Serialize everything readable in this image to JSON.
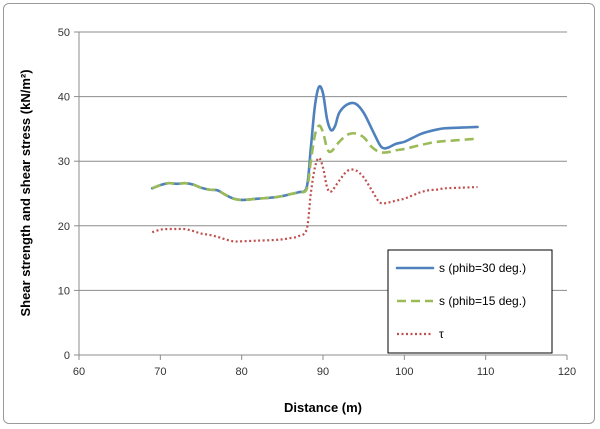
{
  "chart_data": {
    "type": "line",
    "title": "",
    "xlabel": "Distance (m)",
    "ylabel": "Shear strength and shear stress (kN/m²)",
    "xlim": [
      60,
      120
    ],
    "ylim": [
      0,
      50
    ],
    "xticks": [
      60,
      70,
      80,
      90,
      100,
      110,
      120
    ],
    "yticks": [
      0,
      10,
      20,
      30,
      40,
      50
    ],
    "grid": "horizontal",
    "legend_position": "bottom-right",
    "series": [
      {
        "name": "s (phib=30 deg.)",
        "color": "#4f81bd",
        "style": "solid",
        "points": [
          [
            69,
            25.8
          ],
          [
            70,
            26.3
          ],
          [
            71,
            26.6
          ],
          [
            72,
            26.5
          ],
          [
            73,
            26.6
          ],
          [
            74,
            26.4
          ],
          [
            75,
            25.9
          ],
          [
            76,
            25.6
          ],
          [
            77,
            25.5
          ],
          [
            78,
            24.8
          ],
          [
            79,
            24.2
          ],
          [
            80,
            24.0
          ],
          [
            82,
            24.2
          ],
          [
            84,
            24.4
          ],
          [
            85,
            24.6
          ],
          [
            86,
            24.9
          ],
          [
            87,
            25.2
          ],
          [
            88,
            26.0
          ],
          [
            88.5,
            32.0
          ],
          [
            89,
            38.5
          ],
          [
            89.5,
            41.5
          ],
          [
            90,
            40.5
          ],
          [
            90.5,
            36.5
          ],
          [
            91,
            34.8
          ],
          [
            91.5,
            35.5
          ],
          [
            92,
            37.5
          ],
          [
            93,
            38.8
          ],
          [
            94,
            38.9
          ],
          [
            95,
            37.5
          ],
          [
            96,
            35.0
          ],
          [
            97,
            32.5
          ],
          [
            97.5,
            32.0
          ],
          [
            98,
            32.1
          ],
          [
            99,
            32.7
          ],
          [
            100,
            33.0
          ],
          [
            101,
            33.6
          ],
          [
            102,
            34.2
          ],
          [
            103,
            34.6
          ],
          [
            104,
            34.9
          ],
          [
            105,
            35.1
          ],
          [
            107,
            35.2
          ],
          [
            109,
            35.3
          ]
        ]
      },
      {
        "name": "s (phib=15 deg.)",
        "color": "#9bbb59",
        "style": "dashed",
        "points": [
          [
            69,
            25.8
          ],
          [
            70,
            26.3
          ],
          [
            71,
            26.6
          ],
          [
            72,
            26.5
          ],
          [
            73,
            26.6
          ],
          [
            74,
            26.4
          ],
          [
            75,
            25.9
          ],
          [
            76,
            25.6
          ],
          [
            77,
            25.5
          ],
          [
            78,
            24.8
          ],
          [
            79,
            24.2
          ],
          [
            80,
            24.0
          ],
          [
            82,
            24.2
          ],
          [
            84,
            24.4
          ],
          [
            85,
            24.6
          ],
          [
            86,
            24.9
          ],
          [
            87,
            25.2
          ],
          [
            88,
            25.7
          ],
          [
            88.5,
            30.0
          ],
          [
            89,
            34.0
          ],
          [
            89.5,
            35.5
          ],
          [
            90,
            34.5
          ],
          [
            90.5,
            32.0
          ],
          [
            91,
            31.5
          ],
          [
            92,
            33.0
          ],
          [
            93,
            34.1
          ],
          [
            94,
            34.3
          ],
          [
            95,
            33.7
          ],
          [
            96,
            32.2
          ],
          [
            97,
            31.4
          ],
          [
            98,
            31.4
          ],
          [
            99,
            31.7
          ],
          [
            100,
            31.9
          ],
          [
            102,
            32.5
          ],
          [
            104,
            33.0
          ],
          [
            106,
            33.2
          ],
          [
            109,
            33.5
          ]
        ]
      },
      {
        "name": "τ",
        "color": "#c0504d",
        "style": "dotted",
        "points": [
          [
            69,
            19.0
          ],
          [
            70,
            19.4
          ],
          [
            71,
            19.5
          ],
          [
            72,
            19.5
          ],
          [
            73,
            19.5
          ],
          [
            74,
            19.2
          ],
          [
            75,
            18.8
          ],
          [
            76,
            18.6
          ],
          [
            77,
            18.3
          ],
          [
            78,
            17.9
          ],
          [
            79,
            17.6
          ],
          [
            80,
            17.6
          ],
          [
            82,
            17.7
          ],
          [
            84,
            17.8
          ],
          [
            85,
            17.9
          ],
          [
            86,
            18.1
          ],
          [
            87,
            18.4
          ],
          [
            88,
            19.5
          ],
          [
            88.5,
            25.0
          ],
          [
            89,
            29.0
          ],
          [
            89.5,
            30.5
          ],
          [
            90,
            29.0
          ],
          [
            90.5,
            26.0
          ],
          [
            91,
            25.3
          ],
          [
            92,
            27.0
          ],
          [
            93,
            28.5
          ],
          [
            94,
            28.6
          ],
          [
            95,
            27.5
          ],
          [
            96,
            25.5
          ],
          [
            97,
            23.6
          ],
          [
            98,
            23.6
          ],
          [
            99,
            23.9
          ],
          [
            100,
            24.2
          ],
          [
            101,
            24.7
          ],
          [
            102,
            25.2
          ],
          [
            103,
            25.5
          ],
          [
            104,
            25.6
          ],
          [
            105,
            25.8
          ],
          [
            107,
            25.9
          ],
          [
            109,
            26.0
          ]
        ]
      }
    ]
  }
}
